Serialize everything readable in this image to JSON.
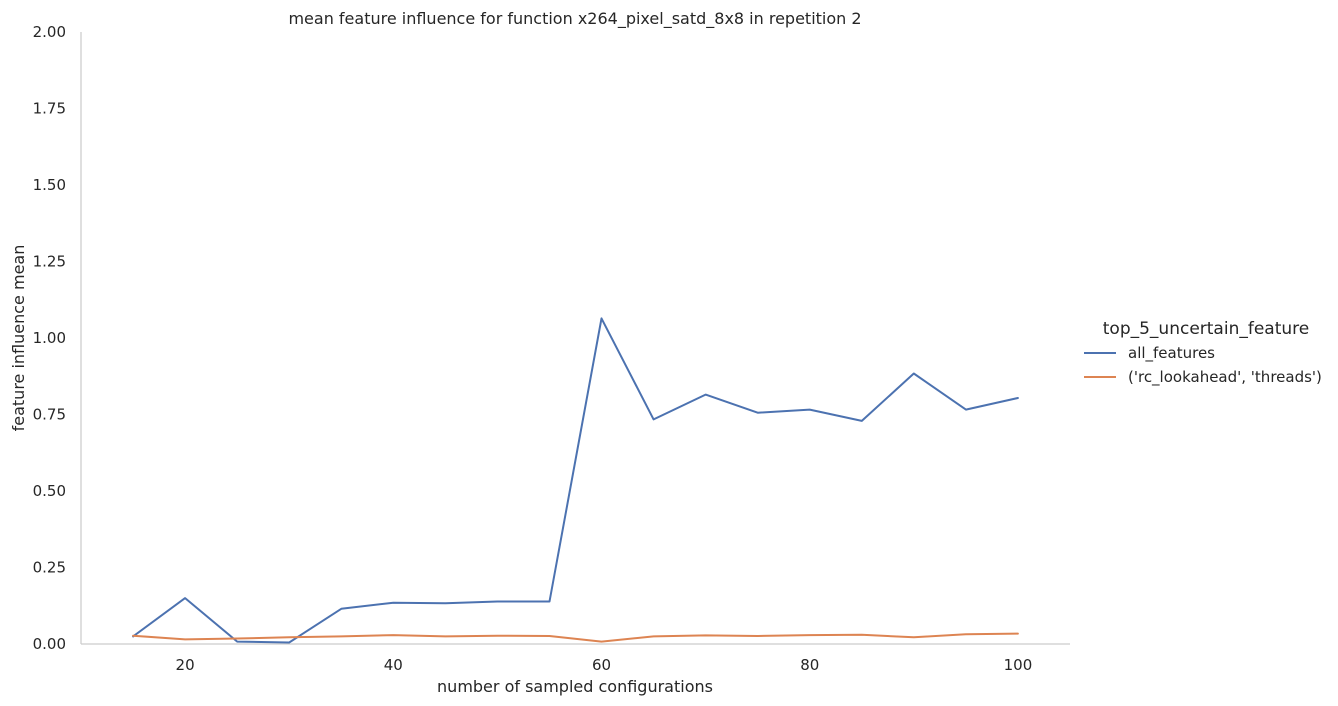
{
  "chart_data": {
    "type": "line",
    "title": "mean feature influence for function x264_pixel_satd_8x8 in repetition 2",
    "xlabel": "number of sampled configurations",
    "ylabel": "feature influence mean",
    "xlim": [
      10,
      105
    ],
    "ylim": [
      0,
      2.0
    ],
    "xticks": [
      20,
      40,
      60,
      80,
      100
    ],
    "yticks": [
      0.0,
      0.25,
      0.5,
      0.75,
      1.0,
      1.25,
      1.5,
      1.75,
      2.0
    ],
    "ytick_labels": [
      "0.00",
      "0.25",
      "0.50",
      "0.75",
      "1.00",
      "1.25",
      "1.50",
      "1.75",
      "2.00"
    ],
    "grid": false,
    "legend": {
      "title": "top_5_uncertain_feature",
      "placement": "right"
    },
    "x": [
      15,
      20,
      25,
      30,
      35,
      40,
      45,
      50,
      55,
      60,
      65,
      70,
      75,
      80,
      85,
      90,
      95,
      100
    ],
    "series": [
      {
        "name": "all_features",
        "color": "#4c72b0",
        "values": [
          0.025,
          0.15,
          0.008,
          0.005,
          0.115,
          0.135,
          0.133,
          0.139,
          0.139,
          1.064,
          0.734,
          0.815,
          0.756,
          0.766,
          0.729,
          0.884,
          0.766,
          0.804
        ]
      },
      {
        "name": "('rc_lookahead', 'threads')",
        "color": "#dd8452",
        "values": [
          0.027,
          0.015,
          0.018,
          0.022,
          0.025,
          0.029,
          0.025,
          0.027,
          0.026,
          0.008,
          0.025,
          0.028,
          0.026,
          0.029,
          0.03,
          0.022,
          0.032,
          0.034
        ]
      }
    ]
  }
}
